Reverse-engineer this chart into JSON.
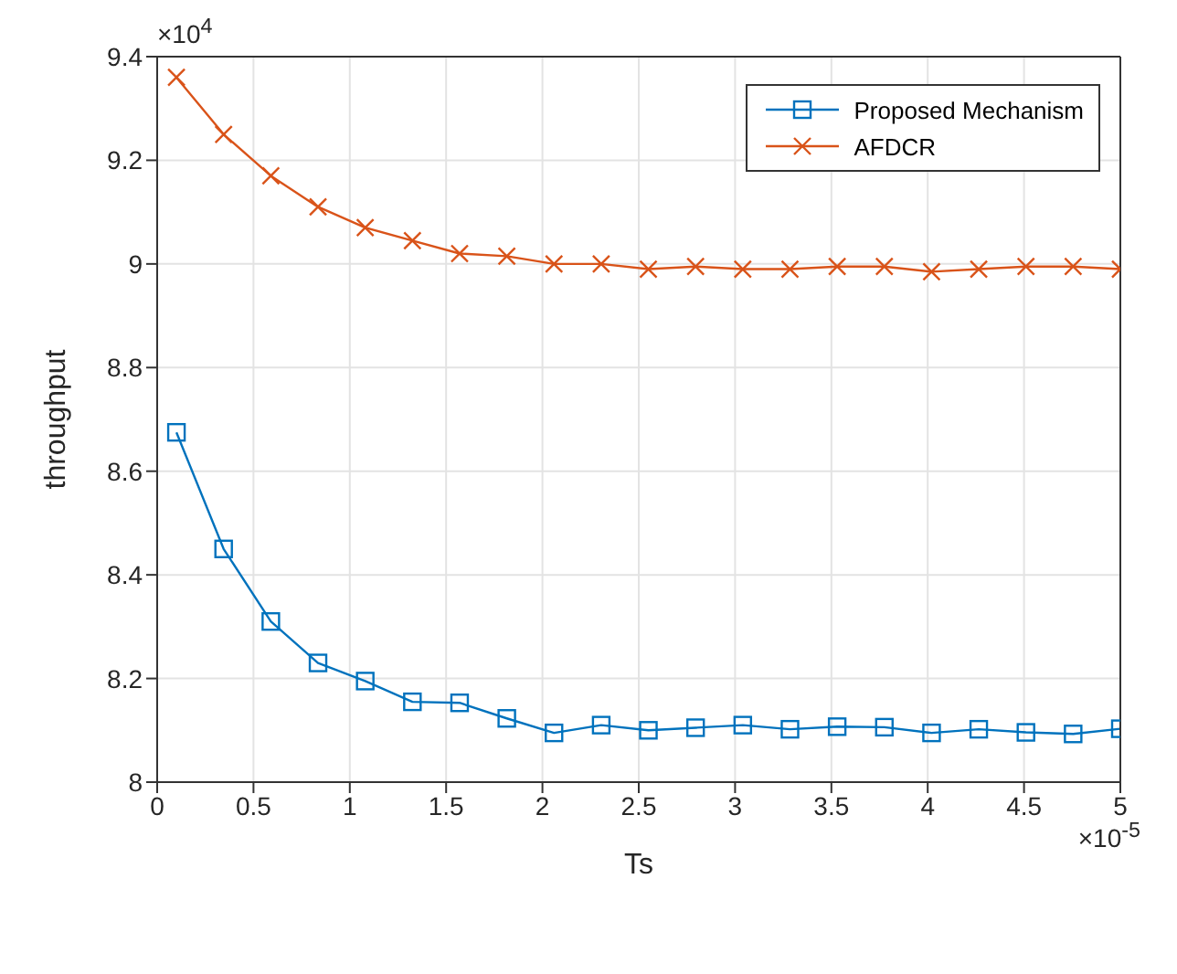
{
  "chart_data": {
    "type": "line",
    "xlabel": "Ts",
    "ylabel": "throughput",
    "x": [
      0.1,
      0.345,
      0.59,
      0.835,
      1.08,
      1.325,
      1.57,
      1.815,
      2.06,
      2.305,
      2.55,
      2.795,
      3.04,
      3.285,
      3.53,
      3.775,
      4.02,
      4.265,
      4.51,
      4.755,
      5.0
    ],
    "series": [
      {
        "name": "Proposed Mechanism",
        "color": "#0072bd",
        "marker": "square",
        "values": [
          8.675,
          8.45,
          8.31,
          8.23,
          8.195,
          8.155,
          8.153,
          8.123,
          8.095,
          8.11,
          8.1,
          8.105,
          8.11,
          8.102,
          8.107,
          8.106,
          8.095,
          8.102,
          8.096,
          8.093,
          8.103
        ]
      },
      {
        "name": "AFDCR",
        "color": "#d95319",
        "marker": "cross",
        "values": [
          9.36,
          9.25,
          9.17,
          9.11,
          9.07,
          9.045,
          9.02,
          9.015,
          9.0,
          9.0,
          8.99,
          8.995,
          8.99,
          8.99,
          8.995,
          8.995,
          8.985,
          8.99,
          8.995,
          8.995,
          8.99
        ]
      }
    ],
    "xlim": [
      0,
      5
    ],
    "xticks": [
      0,
      0.5,
      1,
      1.5,
      2,
      2.5,
      3,
      3.5,
      4,
      4.5,
      5
    ],
    "ylim": [
      8,
      9.4
    ],
    "yticks": [
      8,
      8.2,
      8.4,
      8.6,
      8.8,
      9,
      9.2,
      9.4
    ],
    "annotations": [
      "×10$^{4}$",
      "×10$^{-5}$"
    ],
    "grid": true,
    "legend": "top right",
    "line_style": "solid"
  }
}
